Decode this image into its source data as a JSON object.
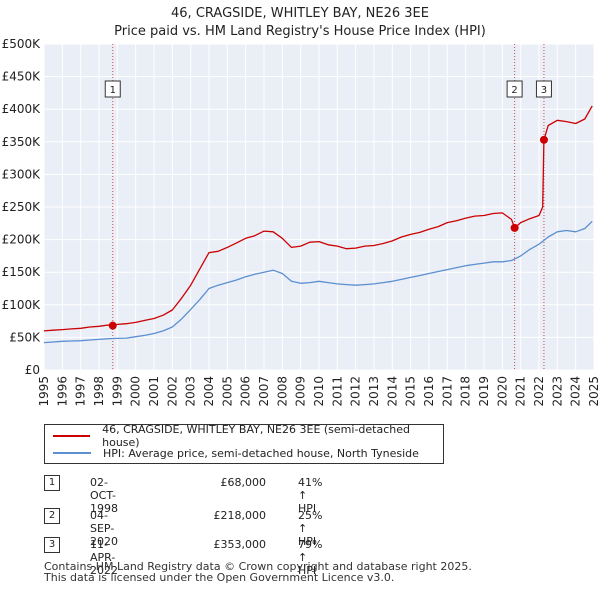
{
  "title": "46, CRAGSIDE, WHITLEY BAY, NE26 3EE",
  "subtitle": "Price paid vs. HM Land Registry's House Price Index (HPI)",
  "chart_data": {
    "type": "line",
    "title": "46, CRAGSIDE, WHITLEY BAY, NE26 3EE",
    "subtitle": "Price paid vs. HM Land Registry's House Price Index (HPI)",
    "xlim": [
      1995,
      2025
    ],
    "ylim": [
      0,
      500000
    ],
    "grid": true,
    "y_ticks": [
      0,
      50000,
      100000,
      150000,
      200000,
      250000,
      300000,
      350000,
      400000,
      450000,
      500000
    ],
    "y_tick_labels": [
      "£0",
      "£50K",
      "£100K",
      "£150K",
      "£200K",
      "£250K",
      "£300K",
      "£350K",
      "£400K",
      "£450K",
      "£500K"
    ],
    "x_ticks": [
      1995,
      1996,
      1997,
      1998,
      1999,
      2000,
      2001,
      2002,
      2003,
      2004,
      2005,
      2006,
      2007,
      2008,
      2009,
      2010,
      2011,
      2012,
      2013,
      2014,
      2015,
      2016,
      2017,
      2018,
      2019,
      2020,
      2021,
      2022,
      2023,
      2024,
      2025
    ],
    "x_tick_labels": [
      "1995",
      "1996",
      "1997",
      "1998",
      "1999",
      "2000",
      "2001",
      "2002",
      "2003",
      "2004",
      "2005",
      "2006",
      "2007",
      "2008",
      "2009",
      "2010",
      "2011",
      "2012",
      "2013",
      "2014",
      "2015",
      "2016",
      "2017",
      "2018",
      "2019",
      "2020",
      "2021",
      "2022",
      "2023",
      "2024",
      "2025"
    ],
    "series": [
      {
        "name": "46, CRAGSIDE, WHITLEY BAY, NE26 3EE (semi-detached house)",
        "color": "#cc0000",
        "x": [
          1995.0,
          1995.5,
          1996.0,
          1996.5,
          1997.0,
          1997.5,
          1998.0,
          1998.5,
          1998.75,
          1999.0,
          1999.5,
          2000.0,
          2000.5,
          2001.0,
          2001.5,
          2002.0,
          2002.5,
          2003.0,
          2003.5,
          2004.0,
          2004.5,
          2005.0,
          2005.5,
          2006.0,
          2006.5,
          2007.0,
          2007.5,
          2008.0,
          2008.5,
          2009.0,
          2009.5,
          2010.0,
          2010.5,
          2011.0,
          2011.5,
          2012.0,
          2012.5,
          2013.0,
          2013.5,
          2014.0,
          2014.5,
          2015.0,
          2015.5,
          2016.0,
          2016.5,
          2017.0,
          2017.5,
          2018.0,
          2018.5,
          2019.0,
          2019.5,
          2020.0,
          2020.5,
          2020.67,
          2021.0,
          2021.5,
          2022.0,
          2022.2,
          2022.27,
          2022.5,
          2023.0,
          2023.5,
          2024.0,
          2024.5,
          2024.9
        ],
        "y": [
          60000,
          61000,
          62000,
          63000,
          64000,
          66000,
          67000,
          69000,
          68000,
          70000,
          71000,
          73000,
          76000,
          79000,
          84000,
          92000,
          110000,
          130000,
          155000,
          180000,
          182000,
          188000,
          195000,
          202000,
          206000,
          213000,
          212000,
          202000,
          188000,
          190000,
          196000,
          197000,
          192000,
          190000,
          186000,
          187000,
          190000,
          191000,
          194000,
          198000,
          204000,
          208000,
          211000,
          216000,
          220000,
          226000,
          229000,
          233000,
          236000,
          237000,
          240000,
          241000,
          231000,
          218000,
          226000,
          232000,
          237000,
          250000,
          353000,
          375000,
          383000,
          381000,
          378000,
          385000,
          405000
        ]
      },
      {
        "name": "HPI: Average price, semi-detached house, North Tyneside",
        "color": "#5b8fd0",
        "x": [
          1995.0,
          1995.5,
          1996.0,
          1996.5,
          1997.0,
          1997.5,
          1998.0,
          1998.5,
          1999.0,
          1999.5,
          2000.0,
          2000.5,
          2001.0,
          2001.5,
          2002.0,
          2002.5,
          2003.0,
          2003.5,
          2004.0,
          2004.5,
          2005.0,
          2005.5,
          2006.0,
          2006.5,
          2007.0,
          2007.5,
          2008.0,
          2008.5,
          2009.0,
          2009.5,
          2010.0,
          2010.5,
          2011.0,
          2011.5,
          2012.0,
          2012.5,
          2013.0,
          2013.5,
          2014.0,
          2014.5,
          2015.0,
          2015.5,
          2016.0,
          2016.5,
          2017.0,
          2017.5,
          2018.0,
          2018.5,
          2019.0,
          2019.5,
          2020.0,
          2020.5,
          2021.0,
          2021.5,
          2022.0,
          2022.5,
          2023.0,
          2023.5,
          2024.0,
          2024.5,
          2024.9
        ],
        "y": [
          42000,
          43000,
          44000,
          44500,
          45000,
          46000,
          47000,
          48000,
          48500,
          49000,
          51000,
          53000,
          56000,
          60000,
          66000,
          78000,
          93000,
          108000,
          125000,
          130000,
          134000,
          138000,
          143000,
          147000,
          150000,
          153000,
          148000,
          136000,
          133000,
          134000,
          136000,
          134000,
          132000,
          131000,
          130000,
          131000,
          132000,
          134000,
          136000,
          139000,
          142000,
          145000,
          148000,
          151000,
          154000,
          157000,
          160000,
          162000,
          164000,
          166000,
          166000,
          168000,
          175000,
          185000,
          193000,
          204000,
          212000,
          214000,
          212000,
          217000,
          228000
        ]
      }
    ],
    "sales": [
      {
        "num": "1",
        "x": 1998.75,
        "y": 68000
      },
      {
        "num": "2",
        "x": 2020.67,
        "y": 218000
      },
      {
        "num": "3",
        "x": 2022.27,
        "y": 353000
      }
    ]
  },
  "legend": {
    "property_label": "46, CRAGSIDE, WHITLEY BAY, NE26 3EE (semi-detached house)",
    "hpi_label": "HPI: Average price, semi-detached house, North Tyneside"
  },
  "transactions": [
    {
      "num": "1",
      "date": "02-OCT-1998",
      "price": "£68,000",
      "hpi": "41% ↑ HPI"
    },
    {
      "num": "2",
      "date": "04-SEP-2020",
      "price": "£218,000",
      "hpi": "25% ↑ HPI"
    },
    {
      "num": "3",
      "date": "11-APR-2022",
      "price": "£353,000",
      "hpi": "79% ↑ HPI"
    }
  ],
  "footer": {
    "line1": "Contains HM Land Registry data © Crown copyright and database right 2025.",
    "line2": "This data is licensed under the Open Government Licence v3.0."
  }
}
